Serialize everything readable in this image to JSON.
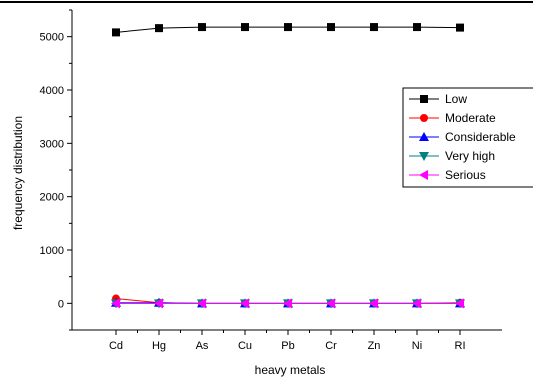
{
  "chart_data": {
    "type": "line",
    "title": "",
    "xlabel": "heavy metals",
    "ylabel": "frequency distribution",
    "categories": [
      "Cd",
      "Hg",
      "As",
      "Cu",
      "Pb",
      "Cr",
      "Zn",
      "Ni",
      "RI"
    ],
    "yticks": [
      "0",
      "1000",
      "2000",
      "3000",
      "4000",
      "5000"
    ],
    "ylim": [
      -500,
      5500
    ],
    "grid": false,
    "legend_position": "right",
    "series": [
      {
        "name": "Low",
        "color": "#000000",
        "marker": "square",
        "values": [
          5080,
          5160,
          5180,
          5180,
          5180,
          5180,
          5180,
          5180,
          5170
        ]
      },
      {
        "name": "Moderate",
        "color": "#ff0000",
        "marker": "circle",
        "values": [
          90,
          10,
          0,
          0,
          0,
          0,
          0,
          0,
          10
        ]
      },
      {
        "name": "Considerable",
        "color": "#0000ff",
        "marker": "triangle-up",
        "values": [
          10,
          10,
          0,
          0,
          0,
          0,
          0,
          0,
          0
        ]
      },
      {
        "name": "Very high",
        "color": "#008080",
        "marker": "triangle-down",
        "values": [
          0,
          0,
          0,
          0,
          0,
          0,
          0,
          0,
          0
        ]
      },
      {
        "name": "Serious",
        "color": "#ff00ff",
        "marker": "triangle-left",
        "values": [
          0,
          0,
          0,
          0,
          0,
          0,
          0,
          0,
          0
        ]
      }
    ]
  }
}
